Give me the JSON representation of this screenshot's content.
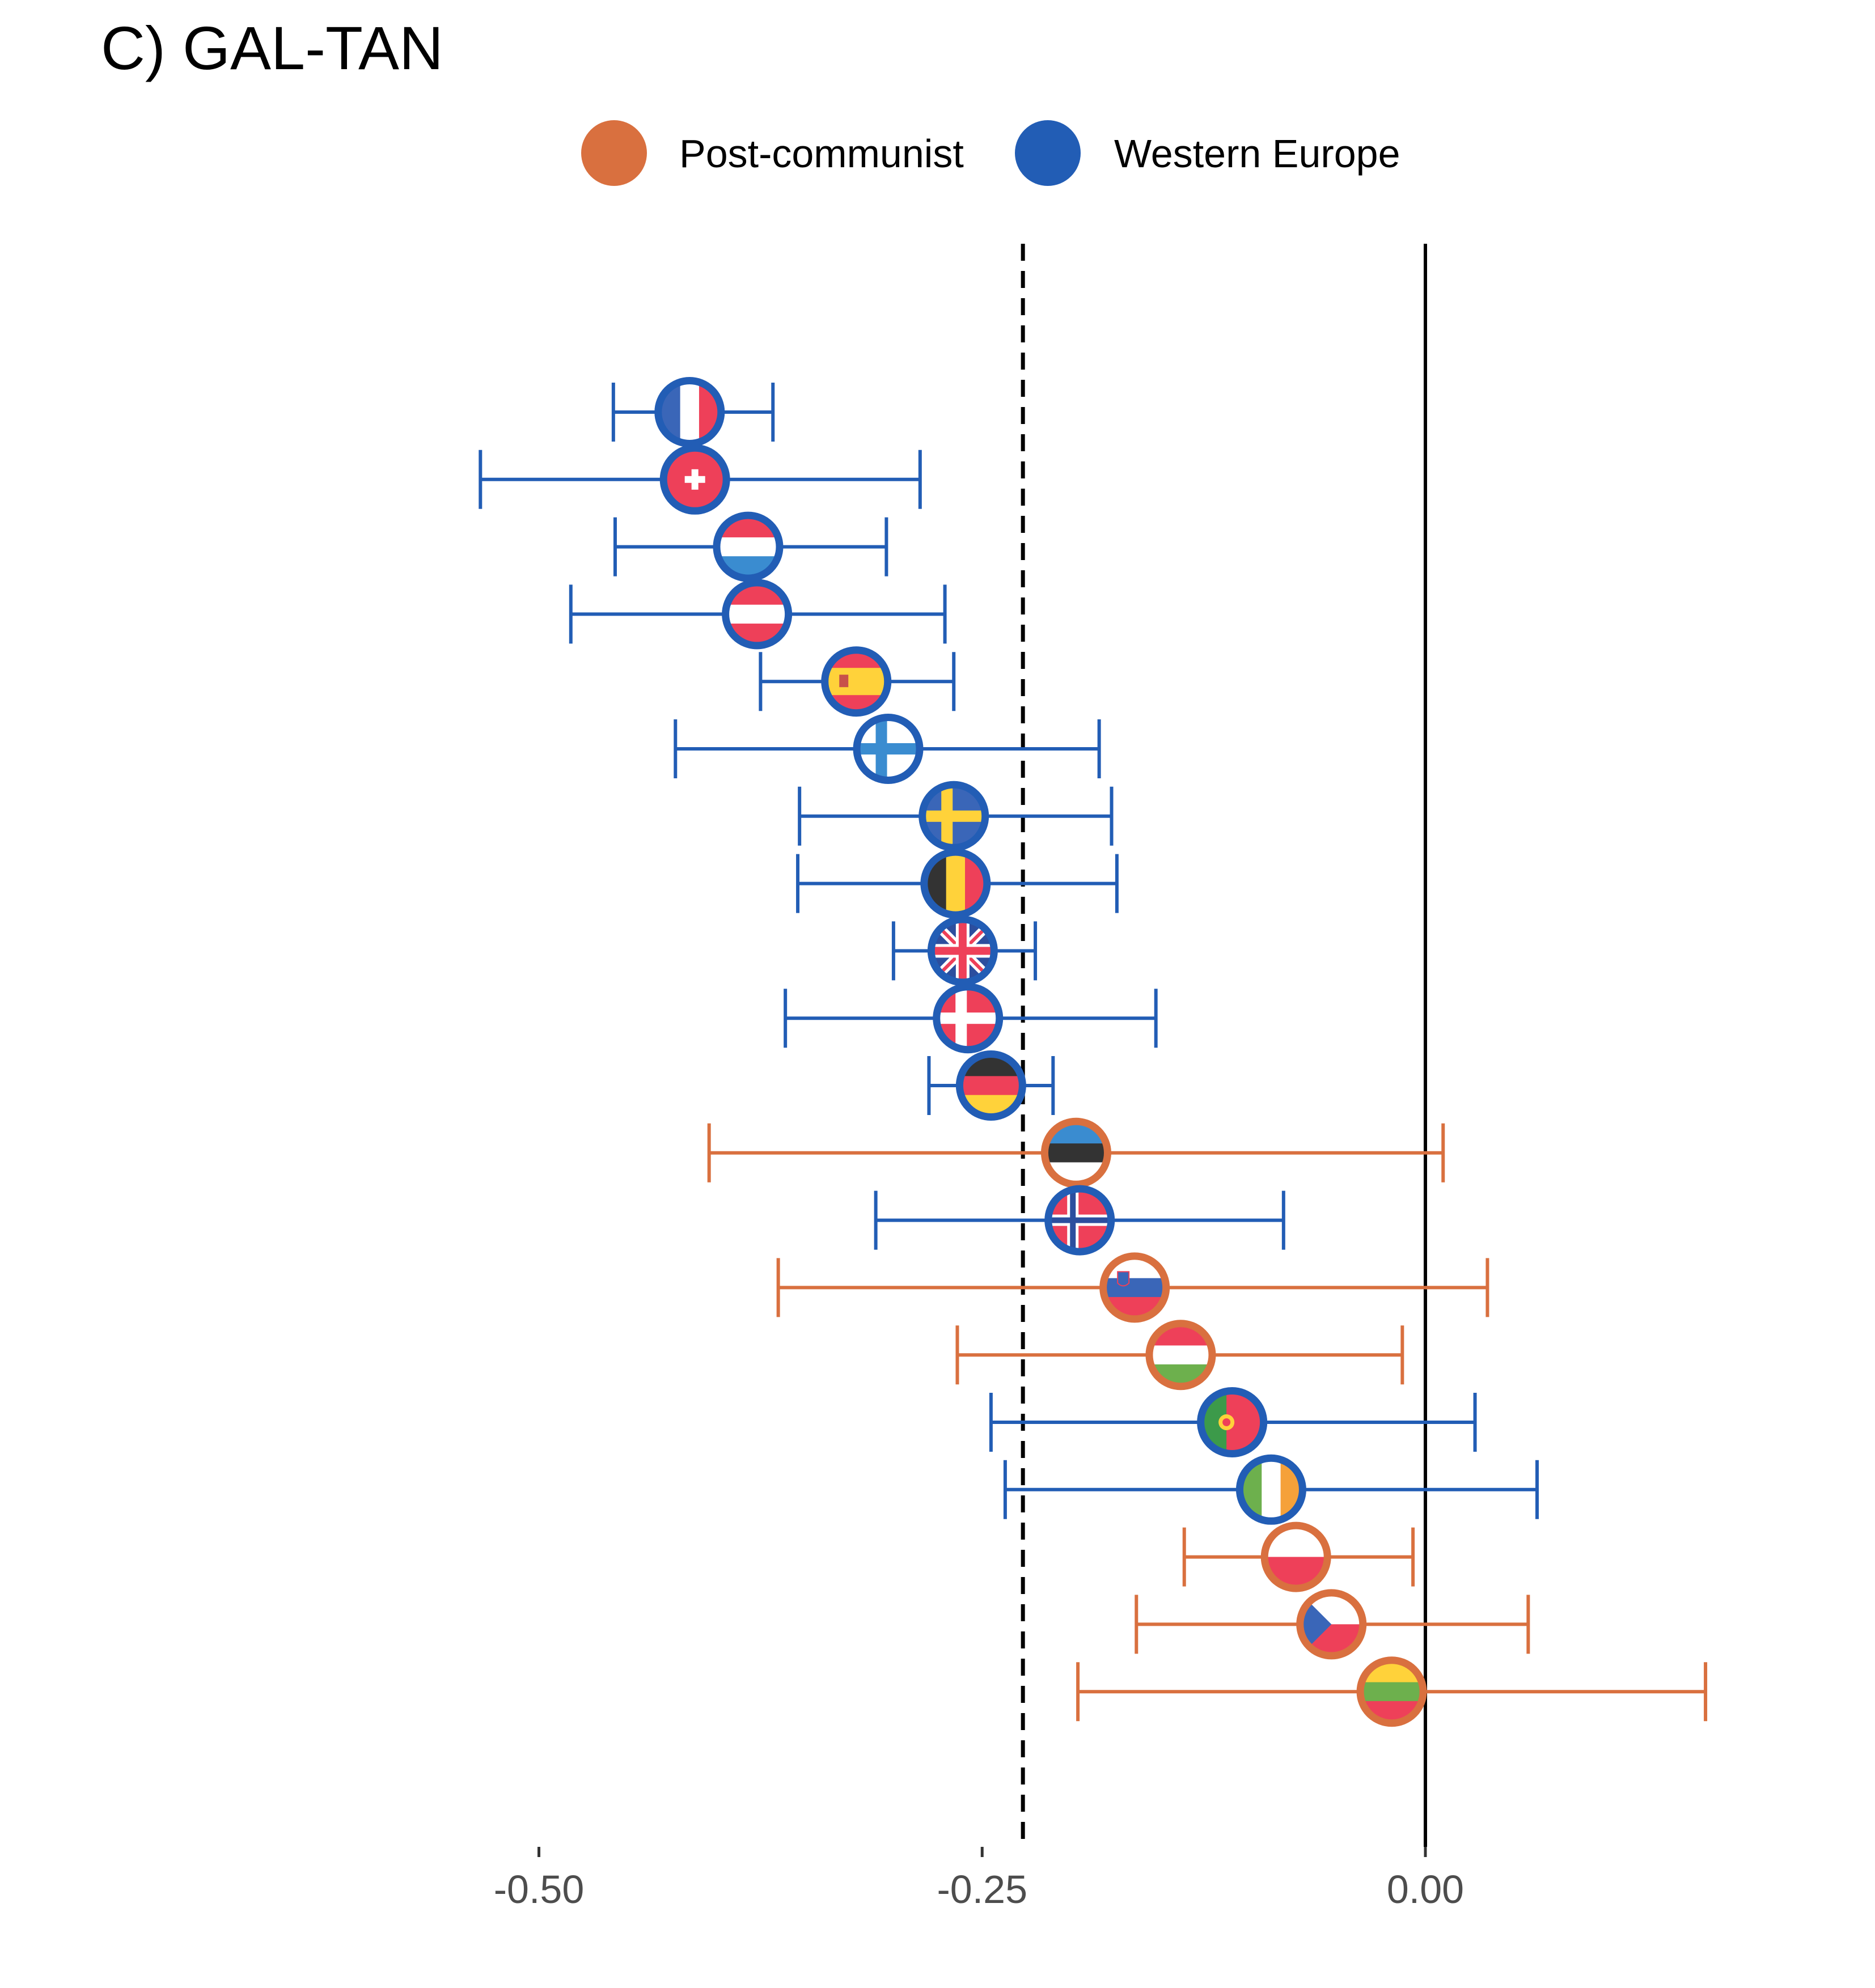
{
  "title": "C) GAL-TAN",
  "chart_data": {
    "type": "dot-whisker",
    "title": "C) GAL-TAN",
    "xlabel": "",
    "ylabel": "",
    "xlim": [
      -0.75,
      0.18
    ],
    "x_ticks": [
      -0.5,
      -0.25,
      0.0
    ],
    "x_tick_labels": [
      "-0.50",
      "-0.25",
      "0.00"
    ],
    "reference_lines": [
      {
        "value": 0.0,
        "style": "solid"
      },
      {
        "value": -0.227,
        "style": "dashed"
      }
    ],
    "grid": false,
    "legend": {
      "placement": "top",
      "entries": [
        {
          "key": "post",
          "label": "Post-communist",
          "color": "#D9703F"
        },
        {
          "key": "west",
          "label": "Western Europe",
          "color": "#225DB5"
        }
      ]
    },
    "points": [
      {
        "flag": "france",
        "group": "west",
        "estimate": -0.415,
        "low": -0.458,
        "high": -0.368
      },
      {
        "flag": "switzerland",
        "group": "west",
        "estimate": -0.412,
        "low": -0.533,
        "high": -0.285
      },
      {
        "flag": "netherlands",
        "group": "west",
        "estimate": -0.382,
        "low": -0.457,
        "high": -0.304
      },
      {
        "flag": "austria",
        "group": "west",
        "estimate": -0.377,
        "low": -0.482,
        "high": -0.271
      },
      {
        "flag": "spain",
        "group": "west",
        "estimate": -0.321,
        "low": -0.375,
        "high": -0.266
      },
      {
        "flag": "finland",
        "group": "west",
        "estimate": -0.303,
        "low": -0.423,
        "high": -0.184
      },
      {
        "flag": "sweden",
        "group": "west",
        "estimate": -0.266,
        "low": -0.353,
        "high": -0.177
      },
      {
        "flag": "belgium",
        "group": "west",
        "estimate": -0.265,
        "low": -0.354,
        "high": -0.174
      },
      {
        "flag": "united-kingdom",
        "group": "west",
        "estimate": -0.261,
        "low": -0.3,
        "high": -0.22
      },
      {
        "flag": "denmark",
        "group": "west",
        "estimate": -0.258,
        "low": -0.361,
        "high": -0.152
      },
      {
        "flag": "germany",
        "group": "west",
        "estimate": -0.245,
        "low": -0.28,
        "high": -0.21
      },
      {
        "flag": "estonia",
        "group": "post",
        "estimate": -0.197,
        "low": -0.404,
        "high": 0.01
      },
      {
        "flag": "norway",
        "group": "west",
        "estimate": -0.195,
        "low": -0.31,
        "high": -0.08
      },
      {
        "flag": "slovenia",
        "group": "post",
        "estimate": -0.164,
        "low": -0.365,
        "high": 0.035
      },
      {
        "flag": "hungary",
        "group": "post",
        "estimate": -0.138,
        "low": -0.264,
        "high": -0.013
      },
      {
        "flag": "portugal",
        "group": "west",
        "estimate": -0.109,
        "low": -0.245,
        "high": 0.028
      },
      {
        "flag": "ireland",
        "group": "west",
        "estimate": -0.087,
        "low": -0.237,
        "high": 0.063
      },
      {
        "flag": "poland",
        "group": "post",
        "estimate": -0.073,
        "low": -0.136,
        "high": -0.007
      },
      {
        "flag": "czech-republic",
        "group": "post",
        "estimate": -0.053,
        "low": -0.163,
        "high": 0.058
      },
      {
        "flag": "lithuania",
        "group": "post",
        "estimate": -0.019,
        "low": -0.196,
        "high": 0.158
      }
    ]
  }
}
